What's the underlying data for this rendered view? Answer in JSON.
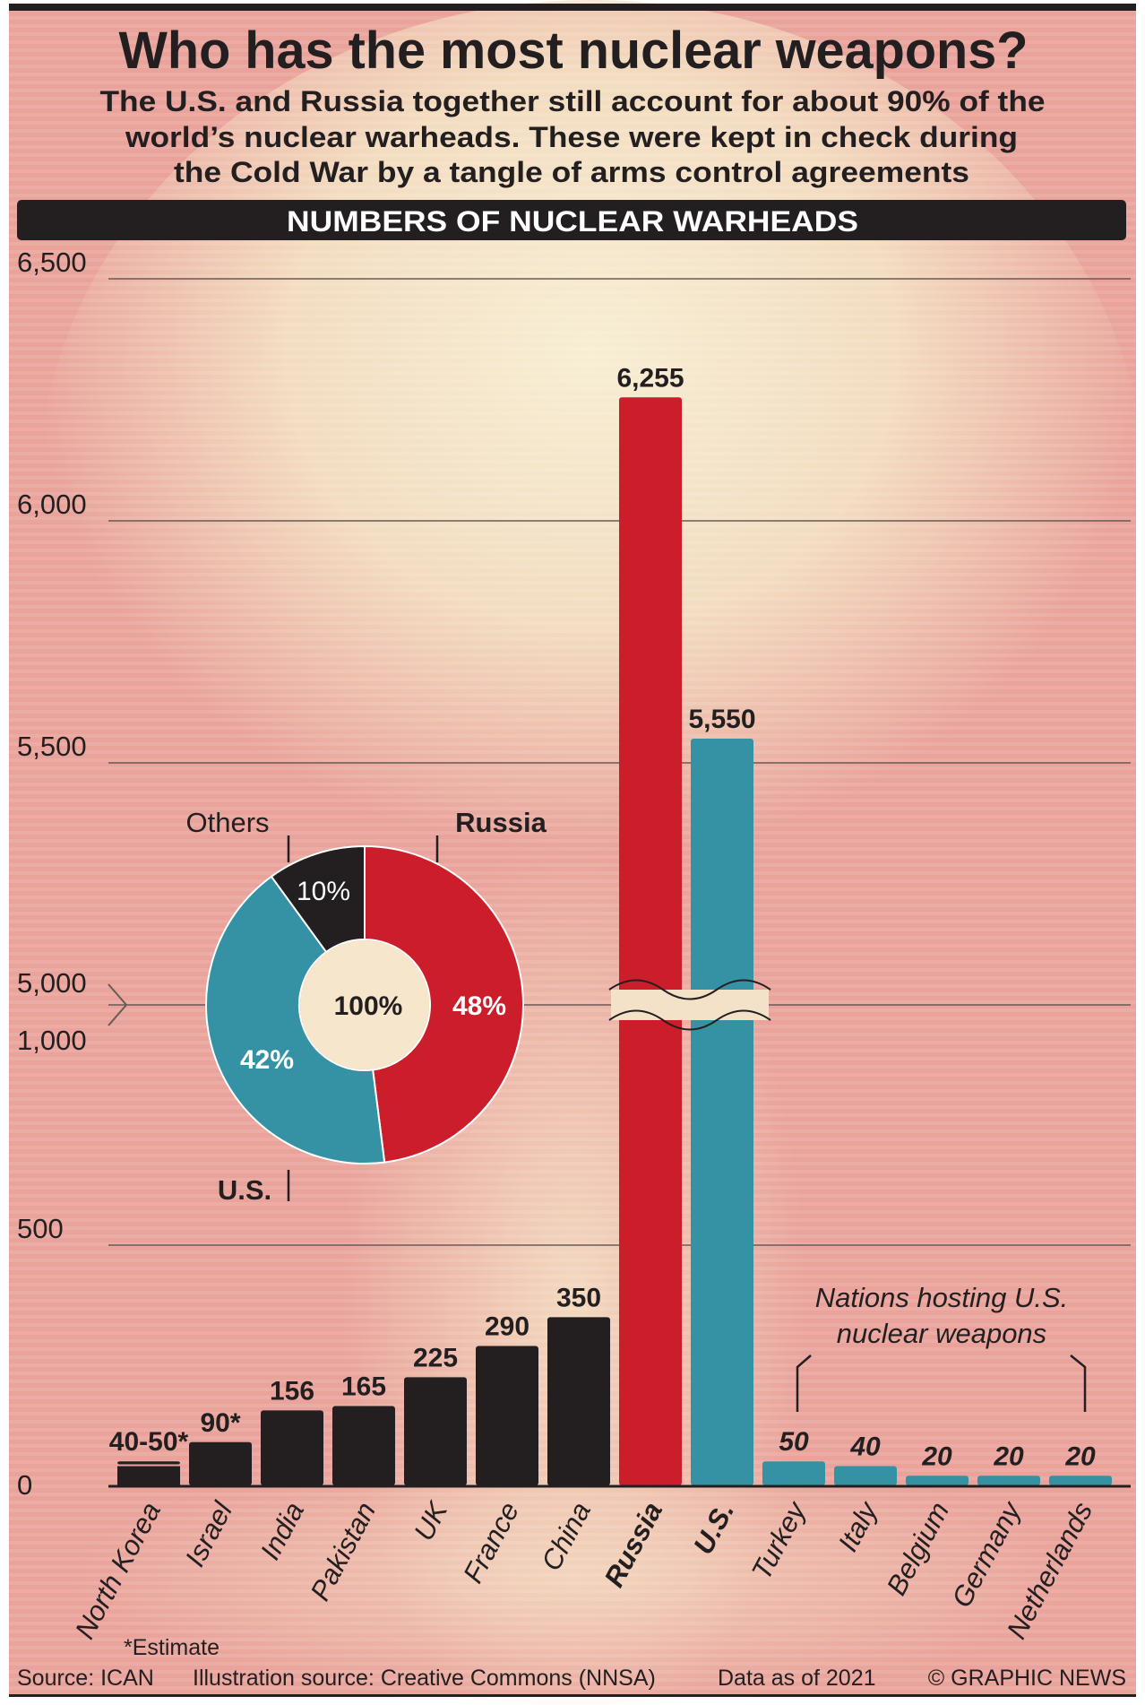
{
  "title": "Who has the most nuclear weapons?",
  "subtitle_lines": [
    "The U.S. and Russia together still account for about 90% of the",
    "world’s nuclear warheads. These were kept in check during",
    "the Cold War by a tangle of arms control agreements"
  ],
  "banner": "NUMBERS OF NUCLEAR WARHEADS",
  "chart_data": {
    "type": "bar",
    "categories": [
      "North Korea",
      "Israel",
      "India",
      "Pakistan",
      "UK",
      "France",
      "China",
      "Russia",
      "U.S.",
      "Turkey",
      "Italy",
      "Belgium",
      "Germany",
      "Netherlands"
    ],
    "values": [
      [
        40,
        50
      ],
      90,
      156,
      165,
      225,
      290,
      350,
      6255,
      5550,
      50,
      40,
      20,
      20,
      20
    ],
    "value_labels": [
      "40-50*",
      "90*",
      "156",
      "165",
      "225",
      "290",
      "350",
      "6,255",
      "5,550",
      "50",
      "40",
      "20",
      "20",
      "20"
    ],
    "bar_colors": [
      "#231f20",
      "#231f20",
      "#231f20",
      "#231f20",
      "#231f20",
      "#231f20",
      "#231f20",
      "#cc1d2b",
      "#3592a4",
      "#3592a4",
      "#3592a4",
      "#3592a4",
      "#3592a4",
      "#3592a4"
    ],
    "bold_categories": [
      "Russia",
      "U.S."
    ],
    "y_ticks": [
      "0",
      "500",
      "1,000",
      "5,000",
      "5,500",
      "6,000",
      "6,500"
    ],
    "y_tick_values": [
      0,
      500,
      1000,
      5000,
      5500,
      6000,
      6500
    ],
    "axis_break": [
      1000,
      5000
    ],
    "ylim": [
      0,
      6500
    ],
    "grid": true
  },
  "donut": {
    "center_label": "100%",
    "slices": [
      {
        "name": "Russia",
        "value": 48,
        "label": "48%",
        "color": "#cc1d2b"
      },
      {
        "name": "U.S.",
        "value": 42,
        "label": "42%",
        "color": "#3592a4"
      },
      {
        "name": "Others",
        "value": 10,
        "label": "10%",
        "color": "#231f20"
      }
    ]
  },
  "annotation": {
    "lines": [
      "Nations hosting U.S.",
      "nuclear weapons"
    ]
  },
  "footnote": "*Estimate",
  "footer": {
    "source": "Source: ICAN",
    "illustration": "Illustration source: Creative Commons (NNSA)",
    "data_as_of": "Data as of 2021",
    "credit": "© GRAPHIC NEWS"
  }
}
